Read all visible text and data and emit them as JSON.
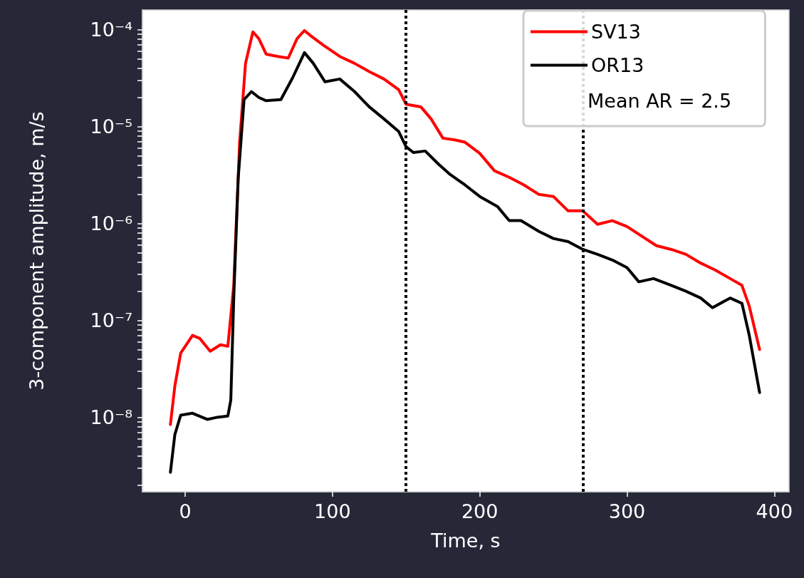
{
  "chart_data": {
    "type": "line",
    "xlabel": "Time, s",
    "ylabel": "3-component amplitude, m/s",
    "log": "y",
    "xlim": [
      -29,
      410
    ],
    "xticks": [
      0,
      100,
      200,
      300,
      400
    ],
    "ylim": [
      1.7e-09,
      0.00016
    ],
    "yticks": [
      {
        "value": 2e-09,
        "label": null
      },
      {
        "value": 3e-09,
        "label": null
      },
      {
        "value": 4e-09,
        "label": null
      },
      {
        "value": 5e-09,
        "label": null
      },
      {
        "value": 6e-09,
        "label": null
      },
      {
        "value": 7e-09,
        "label": null
      },
      {
        "value": 8e-09,
        "label": null
      },
      {
        "value": 9e-09,
        "label": null
      },
      {
        "value": 1e-08,
        "label": "10⁻⁸"
      },
      {
        "value": 2e-08,
        "label": null
      },
      {
        "value": 3e-08,
        "label": null
      },
      {
        "value": 4e-08,
        "label": null
      },
      {
        "value": 5e-08,
        "label": null
      },
      {
        "value": 6e-08,
        "label": null
      },
      {
        "value": 7e-08,
        "label": null
      },
      {
        "value": 8e-08,
        "label": null
      },
      {
        "value": 9e-08,
        "label": null
      },
      {
        "value": 1e-07,
        "label": "10⁻⁷"
      },
      {
        "value": 2e-07,
        "label": null
      },
      {
        "value": 3e-07,
        "label": null
      },
      {
        "value": 4e-07,
        "label": null
      },
      {
        "value": 5e-07,
        "label": null
      },
      {
        "value": 6e-07,
        "label": null
      },
      {
        "value": 7e-07,
        "label": null
      },
      {
        "value": 8e-07,
        "label": null
      },
      {
        "value": 9e-07,
        "label": null
      },
      {
        "value": 1e-06,
        "label": "10⁻⁶"
      },
      {
        "value": 2e-06,
        "label": null
      },
      {
        "value": 3e-06,
        "label": null
      },
      {
        "value": 4e-06,
        "label": null
      },
      {
        "value": 5e-06,
        "label": null
      },
      {
        "value": 6e-06,
        "label": null
      },
      {
        "value": 7e-06,
        "label": null
      },
      {
        "value": 8e-06,
        "label": null
      },
      {
        "value": 9e-06,
        "label": null
      },
      {
        "value": 1e-05,
        "label": "10⁻⁵"
      },
      {
        "value": 2e-05,
        "label": null
      },
      {
        "value": 3e-05,
        "label": null
      },
      {
        "value": 4e-05,
        "label": null
      },
      {
        "value": 5e-05,
        "label": null
      },
      {
        "value": 6e-05,
        "label": null
      },
      {
        "value": 7e-05,
        "label": null
      },
      {
        "value": 8e-05,
        "label": null
      },
      {
        "value": 9e-05,
        "label": null
      },
      {
        "value": 0.0001,
        "label": "10⁻⁴"
      }
    ],
    "grid": false,
    "legend": "top right",
    "marker": "none",
    "line_style": "solid",
    "annotations": [
      "Mean AR = 2.5"
    ],
    "ref_lines": [
      {
        "axis": "x",
        "value": 150,
        "color": "#000000",
        "line_style": "dotted"
      },
      {
        "axis": "x",
        "value": 270,
        "color": "#000000",
        "line_style": "dotted"
      }
    ],
    "series": [
      {
        "name": "SV13",
        "color": "#ff0000",
        "x": [
          -10,
          -7,
          -3,
          5,
          10,
          17,
          24,
          29,
          33,
          37,
          41,
          46,
          50,
          55,
          63,
          70,
          76,
          81,
          86,
          94,
          105,
          115,
          125,
          135,
          145,
          150,
          160,
          167,
          175,
          183,
          190,
          200,
          210,
          220,
          230,
          240,
          250,
          260,
          270,
          280,
          290,
          300,
          310,
          320,
          330,
          340,
          350,
          360,
          370,
          378,
          383,
          390
        ],
        "values": [
          8.4e-09,
          2.1e-08,
          4.6e-08,
          7e-08,
          6.5e-08,
          4.8e-08,
          5.6e-08,
          5.4e-08,
          2.3e-07,
          6.9e-06,
          4.5e-05,
          9.5e-05,
          8.1e-05,
          5.6e-05,
          5.3e-05,
          5.1e-05,
          8.1e-05,
          9.8e-05,
          8.5e-05,
          6.9e-05,
          5.3e-05,
          4.5e-05,
          3.7e-05,
          3.1e-05,
          2.4e-05,
          1.7e-05,
          1.6e-05,
          1.2e-05,
          7.6e-06,
          7.3e-06,
          6.9e-06,
          5.3e-06,
          3.5e-06,
          3e-06,
          2.5e-06,
          2e-06,
          1.9e-06,
          1.35e-06,
          1.35e-06,
          9.8e-07,
          1.07e-06,
          9.3e-07,
          7.4e-07,
          5.9e-07,
          5.4e-07,
          4.8e-07,
          3.9e-07,
          3.3e-07,
          2.7e-07,
          2.3e-07,
          1.4e-07,
          5e-08
        ]
      },
      {
        "name": "OR13",
        "color": "#000000",
        "x": [
          -10,
          -7,
          -3,
          5,
          15,
          22,
          29,
          31,
          33,
          36,
          40,
          45,
          50,
          55,
          65,
          73,
          81,
          87,
          95,
          105,
          115,
          125,
          135,
          145,
          150,
          155,
          163,
          172,
          180,
          190,
          200,
          212,
          220,
          228,
          240,
          250,
          260,
          270,
          280,
          290,
          300,
          308,
          318,
          330,
          340,
          350,
          358,
          370,
          378,
          383,
          390
        ],
        "values": [
          2.7e-09,
          6.6e-09,
          1.05e-08,
          1.1e-08,
          9.5e-09,
          1e-08,
          1.03e-08,
          1.5e-08,
          1.7e-07,
          2.9e-06,
          1.9e-05,
          2.3e-05,
          2e-05,
          1.85e-05,
          1.9e-05,
          3.2e-05,
          5.8e-05,
          4.5e-05,
          2.9e-05,
          3.1e-05,
          2.3e-05,
          1.6e-05,
          1.2e-05,
          8.9e-06,
          6.2e-06,
          5.4e-06,
          5.6e-06,
          4.1e-06,
          3.2e-06,
          2.5e-06,
          1.9e-06,
          1.5e-06,
          1.07e-06,
          1.07e-06,
          8.3e-07,
          7e-07,
          6.5e-07,
          5.4e-07,
          4.8e-07,
          4.2e-07,
          3.5e-07,
          2.5e-07,
          2.7e-07,
          2.3e-07,
          2e-07,
          1.7e-07,
          1.35e-07,
          1.7e-07,
          1.5e-07,
          7e-08,
          1.8e-08
        ]
      }
    ]
  }
}
